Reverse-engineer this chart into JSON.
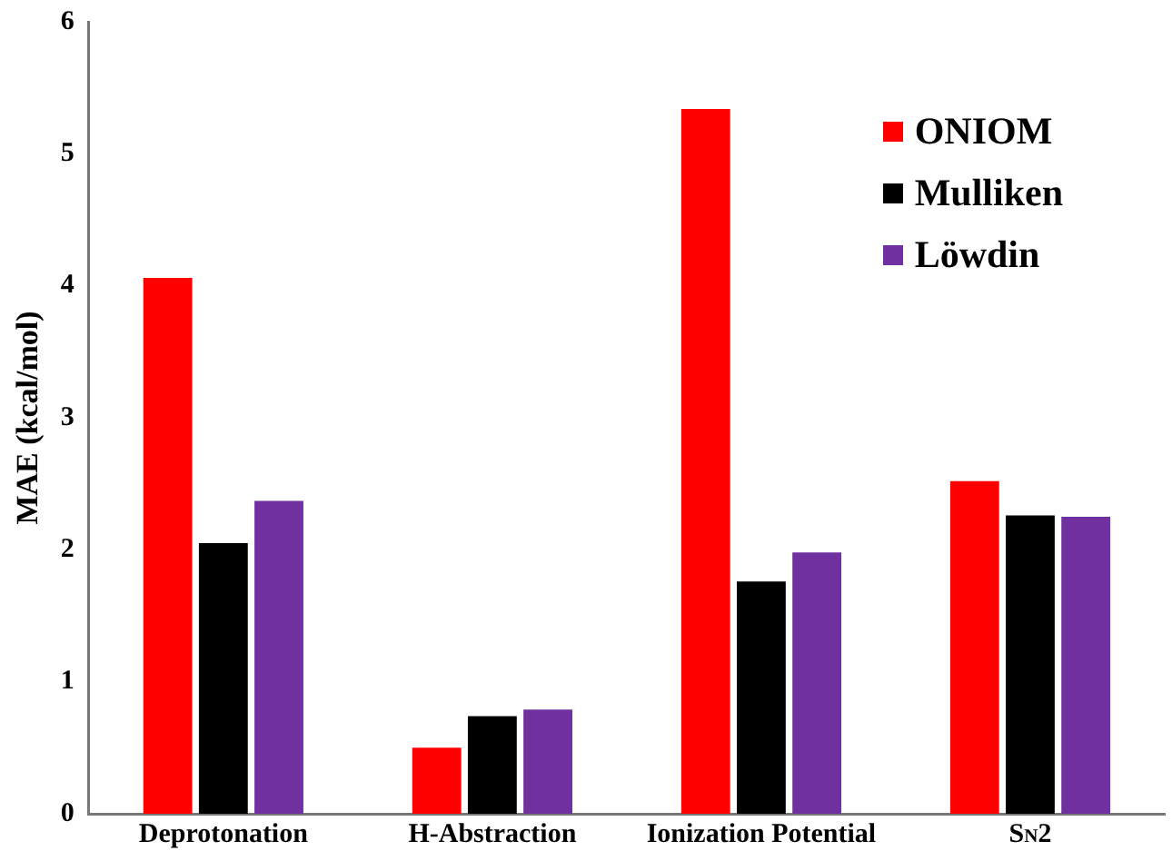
{
  "chart_data": {
    "type": "bar",
    "ylabel": "MAE (kcal/mol)",
    "categories": [
      "Deprotonation",
      "H-Abstraction",
      "Ionization Potential",
      "S$_{N}$2"
    ],
    "series": [
      {
        "name": "ONIOM",
        "color": "#ff0000",
        "values": [
          4.06,
          0.5,
          5.34,
          2.52
        ]
      },
      {
        "name": "Mulliken",
        "color": "#000000",
        "values": [
          2.05,
          0.74,
          1.76,
          2.26
        ]
      },
      {
        "name": "Löwdin",
        "color": "#7030a0",
        "values": [
          2.37,
          0.79,
          1.98,
          2.25
        ]
      }
    ],
    "ylim": [
      0,
      6
    ],
    "yticks": [
      0,
      1,
      2,
      3,
      4,
      5,
      6
    ],
    "grid": false,
    "legend": "top right"
  }
}
